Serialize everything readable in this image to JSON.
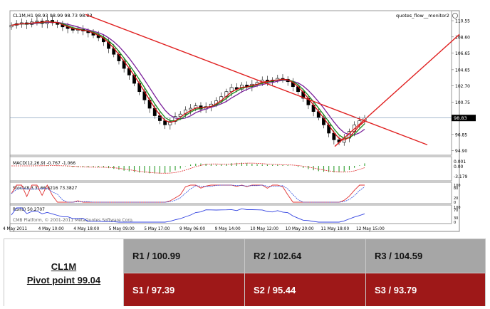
{
  "chart_data": {
    "type": "candlestick",
    "header": "CL1M,H1  98.93 98.99 98.73 98.83",
    "indicator_name": "quotes_flow__monitor2",
    "last_price_label": "98.83",
    "last_price": 98.83,
    "y_ticks": [
      "110.55",
      "108.60",
      "106.65",
      "104.65",
      "102.70",
      "100.75",
      "96.85",
      "94.90"
    ],
    "ylim": [
      94.6,
      111.5
    ],
    "x_ticks": [
      "4 May 2011",
      "4 May 10:00",
      "4 May 18:00",
      "5 May 09:00",
      "5 May 17:00",
      "9 May 06:00",
      "9 May 14:00",
      "10 May 12:00",
      "10 May 20:00",
      "11 May 18:00",
      "12 May 15:00"
    ],
    "closes": [
      110.0,
      110.2,
      110.3,
      110.1,
      110.4,
      110.5,
      110.2,
      110.6,
      110.3,
      110.1,
      109.8,
      109.6,
      109.4,
      109.5,
      109.3,
      109.1,
      108.8,
      108.5,
      108.0,
      107.2,
      106.5,
      105.7,
      104.8,
      104.0,
      103.0,
      102.0,
      101.0,
      100.0,
      99.1,
      98.5,
      98.0,
      98.4,
      99.0,
      99.3,
      99.8,
      100.0,
      100.3,
      99.9,
      100.2,
      100.5,
      100.9,
      101.4,
      102.0,
      102.5,
      102.3,
      102.8,
      102.6,
      102.9,
      103.1,
      103.4,
      103.2,
      103.4,
      103.6,
      103.5,
      103.2,
      102.6,
      102.0,
      101.2,
      100.4,
      99.6,
      98.9,
      98.0,
      97.0,
      96.2,
      95.9,
      96.4,
      97.2,
      98.0,
      98.5,
      98.83
    ],
    "ma_fast_color": "#1a8a1a",
    "ma_mid_color": "#d01010",
    "ma_slow_color": "#7a1f9a",
    "trendline_color": "#e02020",
    "macd": {
      "label": "MACD(12,26,9) -0.767 -1.066",
      "ticks": [
        "0.001",
        "0.00",
        "-3.179"
      ]
    },
    "stoch": {
      "label": "Stoch(8,3,3) 66.6216 73.3827",
      "ticks": [
        "100",
        "80",
        "20",
        "0"
      ]
    },
    "rsi": {
      "label": "RSI(8) 50.2707",
      "ticks": [
        "100",
        "70",
        "30",
        "0"
      ]
    },
    "watermark": "CMB Platform, © 2001-2011 MetaQuotes Software Corp."
  },
  "pivot_table": {
    "instrument": "CL1M",
    "pivot_label": "Pivot point 99.04",
    "r1": "R1 / 100.99",
    "r2": "R2  / 102.64",
    "r3": "R3 / 104.59",
    "s1": "S1 / 97.39",
    "s2": "S2 /  95.44",
    "s3": "S3 /  93.79"
  }
}
